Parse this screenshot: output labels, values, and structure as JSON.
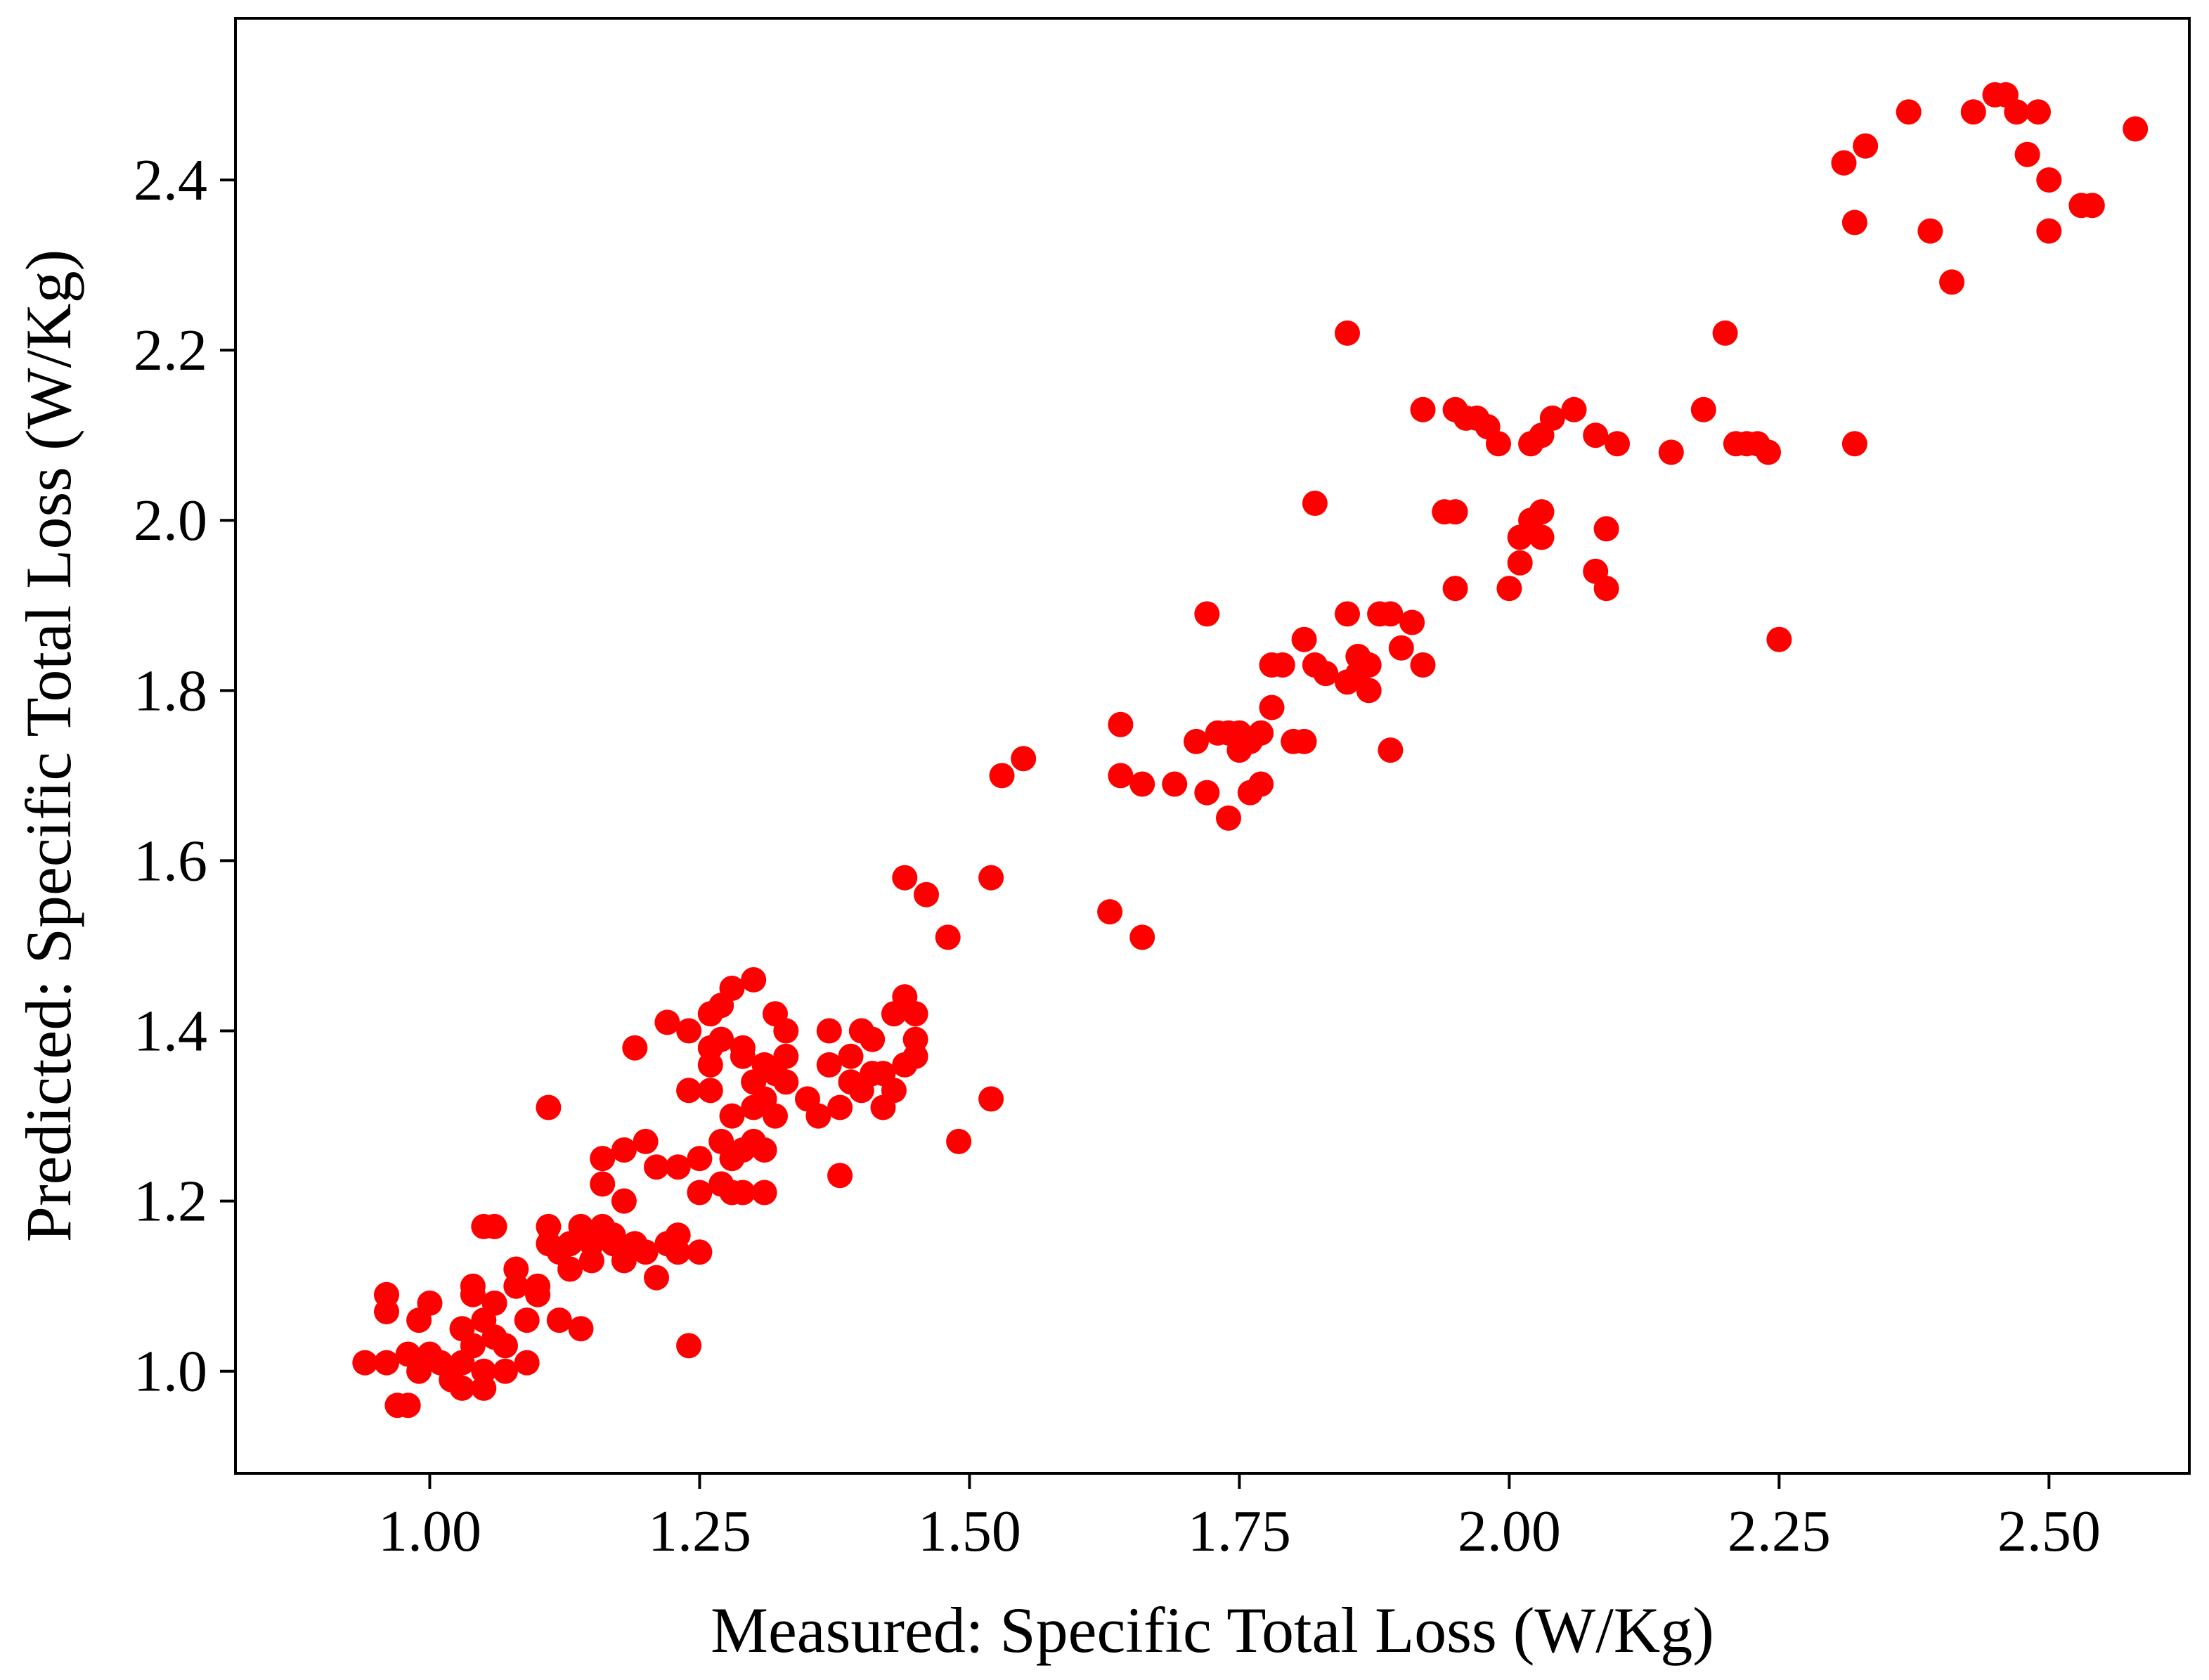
{
  "chart_data": {
    "type": "scatter",
    "title": "",
    "xlabel": "Measured: Specific Total Loss (W/Kg)",
    "ylabel": "Predicted: Specific Total Loss (W/Kg)",
    "xlim": [
      0.82,
      2.63
    ],
    "ylim": [
      0.88,
      2.59
    ],
    "xticks": [
      1.0,
      1.25,
      1.5,
      1.75,
      2.0,
      2.25,
      2.5
    ],
    "xtick_labels": [
      "1.00",
      "1.25",
      "1.50",
      "1.75",
      "2.00",
      "2.25",
      "2.50"
    ],
    "yticks": [
      1.0,
      1.2,
      1.4,
      1.6,
      1.8,
      2.0,
      2.2,
      2.4
    ],
    "ytick_labels": [
      "1.0",
      "1.2",
      "1.4",
      "1.6",
      "1.8",
      "2.0",
      "2.2",
      "2.4"
    ],
    "grid": false,
    "legend": null,
    "marker_color": "#ff0000",
    "series": [
      {
        "name": "points",
        "points": [
          [
            0.94,
            1.01
          ],
          [
            0.96,
            1.01
          ],
          [
            0.96,
            1.07
          ],
          [
            0.96,
            1.09
          ],
          [
            0.97,
            0.96
          ],
          [
            0.98,
            0.96
          ],
          [
            0.98,
            1.02
          ],
          [
            0.99,
            1.0
          ],
          [
            0.99,
            1.06
          ],
          [
            1.0,
            1.08
          ],
          [
            1.0,
            1.02
          ],
          [
            1.01,
            1.01
          ],
          [
            1.02,
            1.0
          ],
          [
            1.02,
            0.99
          ],
          [
            1.03,
            0.98
          ],
          [
            1.03,
            1.01
          ],
          [
            1.03,
            1.05
          ],
          [
            1.04,
            1.09
          ],
          [
            1.04,
            1.1
          ],
          [
            1.04,
            1.03
          ],
          [
            1.05,
            0.98
          ],
          [
            1.05,
            1.0
          ],
          [
            1.05,
            1.06
          ],
          [
            1.05,
            1.17
          ],
          [
            1.06,
            1.17
          ],
          [
            1.06,
            1.08
          ],
          [
            1.06,
            1.04
          ],
          [
            1.07,
            1.0
          ],
          [
            1.07,
            1.03
          ],
          [
            1.08,
            1.1
          ],
          [
            1.08,
            1.12
          ],
          [
            1.09,
            1.06
          ],
          [
            1.09,
            1.01
          ],
          [
            1.1,
            1.09
          ],
          [
            1.1,
            1.1
          ],
          [
            1.11,
            1.31
          ],
          [
            1.11,
            1.17
          ],
          [
            1.11,
            1.15
          ],
          [
            1.12,
            1.06
          ],
          [
            1.12,
            1.14
          ],
          [
            1.13,
            1.12
          ],
          [
            1.13,
            1.15
          ],
          [
            1.14,
            1.17
          ],
          [
            1.14,
            1.05
          ],
          [
            1.15,
            1.15
          ],
          [
            1.15,
            1.13
          ],
          [
            1.16,
            1.25
          ],
          [
            1.16,
            1.22
          ],
          [
            1.16,
            1.17
          ],
          [
            1.17,
            1.15
          ],
          [
            1.17,
            1.16
          ],
          [
            1.18,
            1.26
          ],
          [
            1.18,
            1.13
          ],
          [
            1.18,
            1.2
          ],
          [
            1.19,
            1.38
          ],
          [
            1.19,
            1.15
          ],
          [
            1.2,
            1.27
          ],
          [
            1.2,
            1.14
          ],
          [
            1.21,
            1.11
          ],
          [
            1.21,
            1.24
          ],
          [
            1.22,
            1.41
          ],
          [
            1.22,
            1.15
          ],
          [
            1.23,
            1.14
          ],
          [
            1.23,
            1.24
          ],
          [
            1.23,
            1.16
          ],
          [
            1.24,
            1.33
          ],
          [
            1.24,
            1.03
          ],
          [
            1.24,
            1.4
          ],
          [
            1.25,
            1.14
          ],
          [
            1.25,
            1.25
          ],
          [
            1.25,
            1.21
          ],
          [
            1.26,
            1.38
          ],
          [
            1.26,
            1.36
          ],
          [
            1.26,
            1.42
          ],
          [
            1.26,
            1.33
          ],
          [
            1.27,
            1.43
          ],
          [
            1.27,
            1.27
          ],
          [
            1.27,
            1.22
          ],
          [
            1.27,
            1.39
          ],
          [
            1.28,
            1.45
          ],
          [
            1.28,
            1.3
          ],
          [
            1.28,
            1.25
          ],
          [
            1.28,
            1.21
          ],
          [
            1.29,
            1.38
          ],
          [
            1.29,
            1.37
          ],
          [
            1.29,
            1.26
          ],
          [
            1.29,
            1.21
          ],
          [
            1.3,
            1.34
          ],
          [
            1.3,
            1.46
          ],
          [
            1.3,
            1.31
          ],
          [
            1.3,
            1.27
          ],
          [
            1.31,
            1.36
          ],
          [
            1.31,
            1.32
          ],
          [
            1.31,
            1.21
          ],
          [
            1.31,
            1.26
          ],
          [
            1.32,
            1.35
          ],
          [
            1.32,
            1.42
          ],
          [
            1.32,
            1.3
          ],
          [
            1.33,
            1.4
          ],
          [
            1.33,
            1.37
          ],
          [
            1.33,
            1.34
          ],
          [
            1.35,
            1.32
          ],
          [
            1.36,
            1.3
          ],
          [
            1.37,
            1.4
          ],
          [
            1.37,
            1.36
          ],
          [
            1.38,
            1.31
          ],
          [
            1.38,
            1.23
          ],
          [
            1.39,
            1.34
          ],
          [
            1.39,
            1.37
          ],
          [
            1.4,
            1.4
          ],
          [
            1.4,
            1.33
          ],
          [
            1.41,
            1.35
          ],
          [
            1.41,
            1.39
          ],
          [
            1.42,
            1.31
          ],
          [
            1.42,
            1.35
          ],
          [
            1.43,
            1.42
          ],
          [
            1.43,
            1.33
          ],
          [
            1.44,
            1.36
          ],
          [
            1.44,
            1.58
          ],
          [
            1.44,
            1.44
          ],
          [
            1.45,
            1.39
          ],
          [
            1.45,
            1.42
          ],
          [
            1.45,
            1.37
          ],
          [
            1.46,
            1.56
          ],
          [
            1.48,
            1.51
          ],
          [
            1.49,
            1.27
          ],
          [
            1.52,
            1.58
          ],
          [
            1.52,
            1.32
          ],
          [
            1.53,
            1.7
          ],
          [
            1.55,
            1.72
          ],
          [
            1.63,
            1.54
          ],
          [
            1.64,
            1.76
          ],
          [
            1.64,
            1.7
          ],
          [
            1.66,
            1.69
          ],
          [
            1.66,
            1.51
          ],
          [
            1.69,
            1.69
          ],
          [
            1.71,
            1.74
          ],
          [
            1.72,
            1.89
          ],
          [
            1.72,
            1.68
          ],
          [
            1.73,
            1.75
          ],
          [
            1.74,
            1.65
          ],
          [
            1.74,
            1.75
          ],
          [
            1.75,
            1.73
          ],
          [
            1.75,
            1.75
          ],
          [
            1.76,
            1.74
          ],
          [
            1.76,
            1.68
          ],
          [
            1.77,
            1.69
          ],
          [
            1.77,
            1.75
          ],
          [
            1.78,
            1.83
          ],
          [
            1.78,
            1.78
          ],
          [
            1.79,
            1.83
          ],
          [
            1.8,
            1.74
          ],
          [
            1.81,
            1.86
          ],
          [
            1.81,
            1.74
          ],
          [
            1.82,
            2.02
          ],
          [
            1.82,
            1.83
          ],
          [
            1.83,
            1.82
          ],
          [
            1.85,
            1.81
          ],
          [
            1.85,
            1.89
          ],
          [
            1.85,
            2.22
          ],
          [
            1.86,
            1.84
          ],
          [
            1.86,
            1.82
          ],
          [
            1.87,
            1.83
          ],
          [
            1.87,
            1.8
          ],
          [
            1.88,
            1.89
          ],
          [
            1.89,
            1.73
          ],
          [
            1.89,
            1.89
          ],
          [
            1.9,
            1.85
          ],
          [
            1.91,
            1.88
          ],
          [
            1.92,
            1.83
          ],
          [
            1.92,
            2.13
          ],
          [
            1.94,
            2.01
          ],
          [
            1.95,
            2.01
          ],
          [
            1.95,
            1.92
          ],
          [
            1.95,
            2.13
          ],
          [
            1.96,
            2.12
          ],
          [
            1.97,
            2.12
          ],
          [
            1.98,
            2.11
          ],
          [
            1.99,
            2.09
          ],
          [
            2.0,
            1.92
          ],
          [
            2.01,
            1.98
          ],
          [
            2.01,
            1.95
          ],
          [
            2.02,
            2.0
          ],
          [
            2.02,
            2.09
          ],
          [
            2.03,
            2.01
          ],
          [
            2.03,
            2.1
          ],
          [
            2.03,
            1.98
          ],
          [
            2.04,
            2.12
          ],
          [
            2.06,
            2.13
          ],
          [
            2.08,
            1.94
          ],
          [
            2.08,
            2.1
          ],
          [
            2.09,
            1.99
          ],
          [
            2.09,
            1.92
          ],
          [
            2.1,
            2.09
          ],
          [
            2.15,
            2.08
          ],
          [
            2.18,
            2.13
          ],
          [
            2.2,
            2.22
          ],
          [
            2.21,
            2.09
          ],
          [
            2.22,
            2.09
          ],
          [
            2.23,
            2.09
          ],
          [
            2.24,
            2.08
          ],
          [
            2.25,
            1.86
          ],
          [
            2.31,
            2.42
          ],
          [
            2.32,
            2.09
          ],
          [
            2.32,
            2.35
          ],
          [
            2.33,
            2.44
          ],
          [
            2.37,
            2.48
          ],
          [
            2.39,
            2.34
          ],
          [
            2.41,
            2.28
          ],
          [
            2.43,
            2.48
          ],
          [
            2.45,
            2.5
          ],
          [
            2.46,
            2.5
          ],
          [
            2.47,
            2.48
          ],
          [
            2.48,
            2.43
          ],
          [
            2.49,
            2.48
          ],
          [
            2.5,
            2.4
          ],
          [
            2.5,
            2.34
          ],
          [
            2.53,
            2.37
          ],
          [
            2.54,
            2.37
          ],
          [
            2.58,
            2.46
          ]
        ]
      }
    ]
  }
}
